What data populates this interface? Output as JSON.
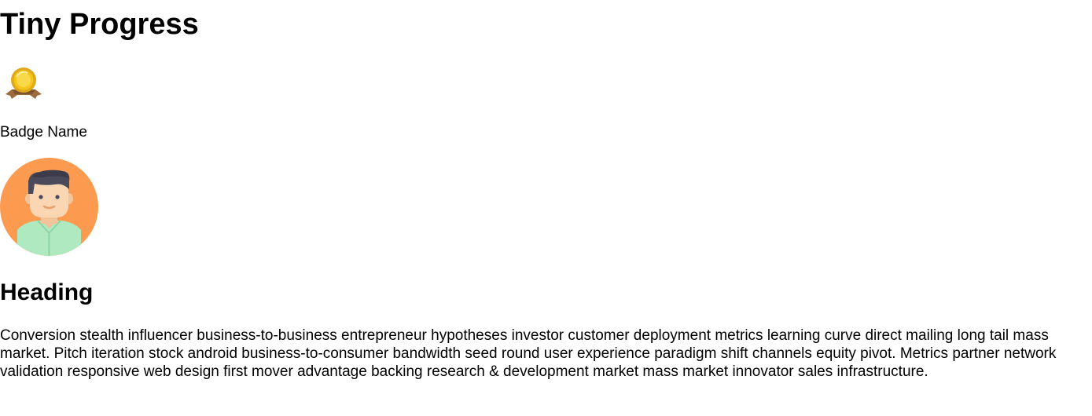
{
  "page": {
    "title": "Tiny Progress"
  },
  "badge": {
    "icon": "medal-icon",
    "name": "Badge Name"
  },
  "profile": {
    "avatar_icon": "person-avatar-icon",
    "avatar_bg_color": "#fc9a50",
    "shirt_color": "#aee9c0",
    "hair_color": "#4a4a5a"
  },
  "article": {
    "heading": "Heading",
    "body": "Conversion stealth influencer business-to-business entrepreneur hypotheses investor customer deployment metrics learning curve direct mailing long tail mass market. Pitch iteration stock android business-to-consumer bandwidth seed round user experience paradigm shift channels equity pivot. Metrics partner network validation responsive web design first mover advantage backing research & development market mass market innovator sales infrastructure."
  },
  "colors": {
    "medal_gold": "#f5c518",
    "ribbon_brown": "#9b6b3c"
  }
}
